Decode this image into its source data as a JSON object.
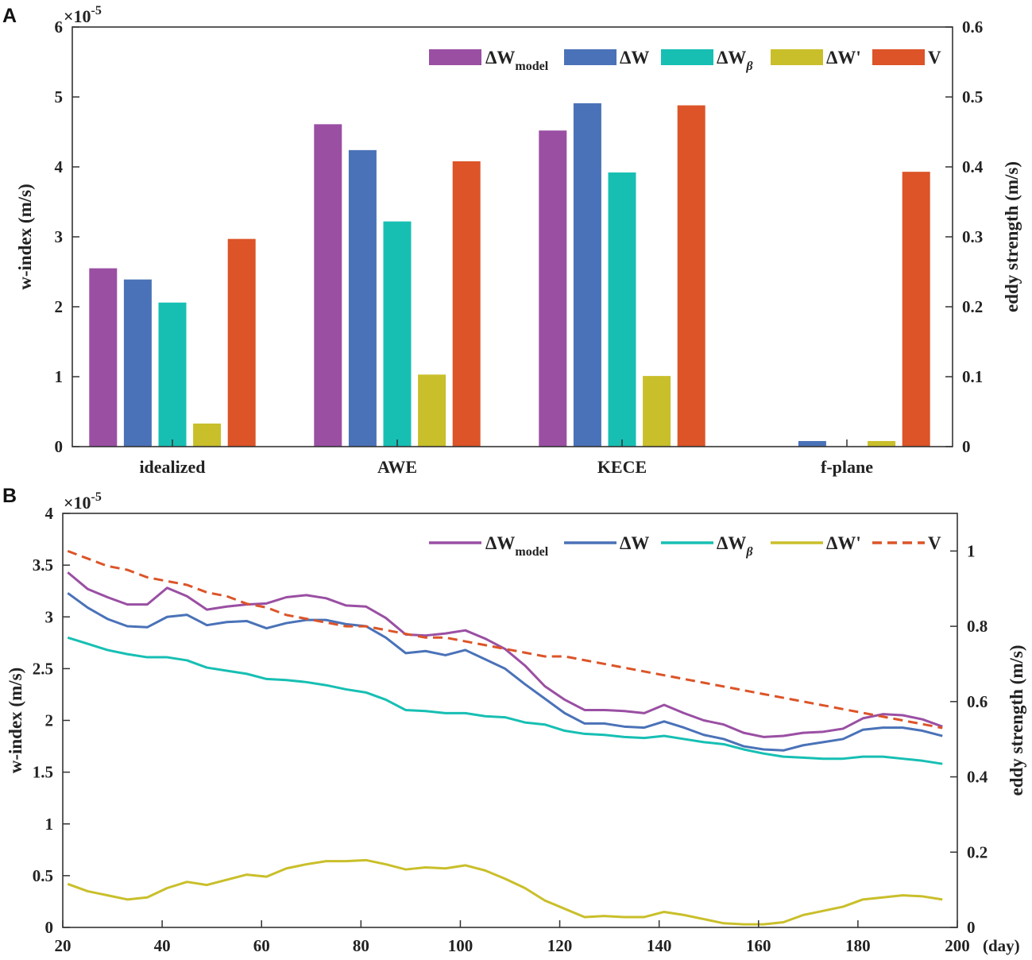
{
  "panels": [
    {
      "label": "A"
    },
    {
      "label": "B"
    }
  ],
  "legend": [
    {
      "base": "ΔW",
      "sub": "model",
      "color": "#9a4fa3",
      "style": "solid"
    },
    {
      "base": "ΔW",
      "sub": "",
      "color": "#4a72b8",
      "style": "solid"
    },
    {
      "base": "ΔW",
      "sub": "β",
      "color": "#17bfb3",
      "style": "solid"
    },
    {
      "base": "ΔW'",
      "sub": "",
      "color": "#c9bf2a",
      "style": "solid"
    },
    {
      "base": "V",
      "sub": "",
      "color": "#dc5428",
      "style": "dashed"
    }
  ],
  "chart_data": [
    {
      "type": "bar",
      "panel": "A",
      "categories": [
        "idealized",
        "AWE",
        "KECE",
        "f-plane"
      ],
      "ylabel": "w-index (m/s)",
      "ylabel_right": "eddy strength (m/s)",
      "ylim": [
        0,
        6
      ],
      "yticks": [
        "0",
        "1",
        "2",
        "3",
        "4",
        "5",
        "6"
      ],
      "ylim_right": [
        0,
        0.6
      ],
      "yticks_right": [
        "0",
        "0.1",
        "0.2",
        "0.3",
        "0.4",
        "0.5",
        "0.6"
      ],
      "exponent": "×10",
      "exponent_power": "-5",
      "series": [
        {
          "name": "ΔW_model",
          "axis": "left",
          "values": [
            2.55,
            4.61,
            4.52,
            0.0
          ]
        },
        {
          "name": "ΔW",
          "axis": "left",
          "values": [
            2.39,
            4.24,
            4.91,
            0.08
          ]
        },
        {
          "name": "ΔW_β",
          "axis": "left",
          "values": [
            2.06,
            3.22,
            3.92,
            0.0
          ]
        },
        {
          "name": "ΔW'",
          "axis": "left",
          "values": [
            0.33,
            1.03,
            1.01,
            0.08
          ]
        },
        {
          "name": "V",
          "axis": "right",
          "values": [
            0.297,
            0.408,
            0.488,
            0.393
          ]
        }
      ]
    },
    {
      "type": "line",
      "panel": "B",
      "xlabel": "(day)",
      "ylabel": "w-index (m/s)",
      "ylabel_right": "eddy strength (m/s)",
      "xlim": [
        20,
        200
      ],
      "xticks": [
        "20",
        "40",
        "60",
        "80",
        "100",
        "120",
        "140",
        "160",
        "180",
        "200"
      ],
      "ylim": [
        0,
        4
      ],
      "yticks": [
        "0",
        "0.5",
        "1",
        "1.5",
        "2",
        "2.5",
        "3",
        "3.5",
        "4"
      ],
      "ylim_right": [
        0,
        1.1
      ],
      "yticks_right": [
        "0",
        "0.2",
        "0.4",
        "0.6",
        "0.8",
        "1"
      ],
      "exponent": "×10",
      "exponent_power": "-5",
      "x": [
        21,
        25,
        29,
        33,
        37,
        41,
        45,
        49,
        53,
        57,
        61,
        65,
        69,
        73,
        77,
        81,
        85,
        89,
        93,
        97,
        101,
        105,
        109,
        113,
        117,
        121,
        125,
        129,
        133,
        137,
        141,
        145,
        149,
        153,
        157,
        161,
        165,
        169,
        173,
        177,
        181,
        185,
        189,
        193,
        197
      ],
      "series": [
        {
          "name": "ΔW_model",
          "axis": "left",
          "values": [
            3.43,
            3.27,
            3.19,
            3.12,
            3.12,
            3.28,
            3.2,
            3.07,
            3.1,
            3.12,
            3.13,
            3.19,
            3.21,
            3.18,
            3.11,
            3.1,
            2.99,
            2.83,
            2.82,
            2.84,
            2.87,
            2.79,
            2.69,
            2.53,
            2.33,
            2.2,
            2.1,
            2.1,
            2.09,
            2.07,
            2.15,
            2.07,
            2.0,
            1.96,
            1.88,
            1.84,
            1.85,
            1.88,
            1.89,
            1.92,
            2.02,
            2.06,
            2.05,
            2.01,
            1.94
          ]
        },
        {
          "name": "ΔW",
          "axis": "left",
          "values": [
            3.23,
            3.09,
            2.98,
            2.91,
            2.9,
            3.0,
            3.02,
            2.92,
            2.95,
            2.96,
            2.89,
            2.94,
            2.97,
            2.97,
            2.93,
            2.91,
            2.8,
            2.65,
            2.67,
            2.63,
            2.68,
            2.59,
            2.5,
            2.35,
            2.21,
            2.07,
            1.97,
            1.97,
            1.94,
            1.93,
            1.99,
            1.93,
            1.86,
            1.82,
            1.75,
            1.72,
            1.71,
            1.76,
            1.79,
            1.82,
            1.91,
            1.93,
            1.93,
            1.9,
            1.85
          ]
        },
        {
          "name": "ΔW_β",
          "axis": "left",
          "values": [
            2.8,
            2.74,
            2.68,
            2.64,
            2.61,
            2.61,
            2.58,
            2.51,
            2.48,
            2.45,
            2.4,
            2.39,
            2.37,
            2.34,
            2.3,
            2.27,
            2.2,
            2.1,
            2.09,
            2.07,
            2.07,
            2.04,
            2.03,
            1.98,
            1.96,
            1.9,
            1.87,
            1.86,
            1.84,
            1.83,
            1.85,
            1.82,
            1.79,
            1.77,
            1.72,
            1.68,
            1.65,
            1.64,
            1.63,
            1.63,
            1.65,
            1.65,
            1.63,
            1.61,
            1.58
          ]
        },
        {
          "name": "ΔW'",
          "axis": "left",
          "values": [
            0.42,
            0.35,
            0.31,
            0.27,
            0.29,
            0.38,
            0.44,
            0.41,
            0.46,
            0.51,
            0.49,
            0.57,
            0.61,
            0.64,
            0.64,
            0.65,
            0.61,
            0.56,
            0.58,
            0.57,
            0.6,
            0.55,
            0.47,
            0.38,
            0.26,
            0.18,
            0.1,
            0.11,
            0.1,
            0.1,
            0.15,
            0.12,
            0.08,
            0.04,
            0.03,
            0.03,
            0.05,
            0.12,
            0.16,
            0.2,
            0.27,
            0.29,
            0.31,
            0.3,
            0.27
          ]
        },
        {
          "name": "V",
          "axis": "right",
          "values": [
            1.0,
            0.98,
            0.96,
            0.95,
            0.93,
            0.92,
            0.91,
            0.89,
            0.88,
            0.86,
            0.85,
            0.83,
            0.82,
            0.81,
            0.8,
            0.8,
            0.79,
            0.78,
            0.77,
            0.77,
            0.76,
            0.75,
            0.74,
            0.73,
            0.72,
            0.72,
            0.71,
            0.7,
            0.69,
            0.68,
            0.67,
            0.66,
            0.65,
            0.64,
            0.63,
            0.62,
            0.61,
            0.6,
            0.59,
            0.58,
            0.57,
            0.56,
            0.55,
            0.54,
            0.53
          ]
        }
      ]
    }
  ]
}
